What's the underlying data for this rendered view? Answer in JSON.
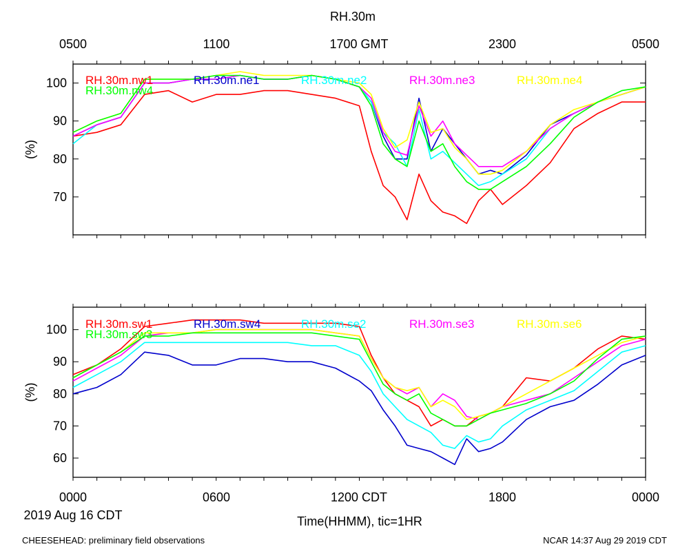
{
  "title": "RH.30m",
  "top_time_labels": [
    "0500",
    "1100",
    "1700 GMT",
    "2300",
    "0500"
  ],
  "bottom_time_labels": [
    "0000",
    "0600",
    "1200 CDT",
    "1800",
    "0000"
  ],
  "date_label": "2019 Aug 16 CDT",
  "xlabel": "Time(HHMM), tic=1HR",
  "footer_left": "CHEESEHEAD: preliminary field observations",
  "footer_right": "NCAR 14:37 Aug 29 2019 CDT",
  "colors": {
    "red": "#ff0000",
    "blue": "#0000cc",
    "cyan": "#00ffff",
    "magenta": "#ff00ff",
    "yellow": "#ffff00",
    "green": "#00ff00"
  },
  "chart_data": [
    {
      "type": "line",
      "name": "top-panel",
      "xlabel": "",
      "ylabel": "(%)",
      "xlim": [
        0,
        24
      ],
      "ylim": [
        60,
        105
      ],
      "yticks": [
        70,
        80,
        90,
        100
      ],
      "series": [
        {
          "name": "RH.30m.nw1",
          "color": "red",
          "x": [
            0,
            1,
            2,
            3,
            4,
            5,
            6,
            7,
            8,
            9,
            10,
            11,
            12,
            12.5,
            13,
            13.5,
            14,
            14.5,
            15,
            15.5,
            16,
            16.5,
            17,
            17.5,
            18,
            19,
            20,
            21,
            22,
            23,
            24
          ],
          "y": [
            86,
            87,
            89,
            97,
            98,
            95,
            97,
            97,
            98,
            98,
            97,
            96,
            94,
            82,
            73,
            70,
            64,
            76,
            69,
            66,
            65,
            63,
            69,
            72,
            68,
            73,
            79,
            88,
            92,
            95,
            95
          ]
        },
        {
          "name": "RH.30m.ne1",
          "color": "blue",
          "x": [
            0,
            1,
            2,
            3,
            4,
            5,
            6,
            7,
            8,
            9,
            10,
            11,
            12,
            12.5,
            13,
            13.5,
            14,
            14.5,
            15,
            15.5,
            16,
            16.5,
            17,
            17.5,
            18,
            19,
            20,
            21,
            22,
            23,
            24
          ],
          "y": [
            86,
            89,
            91,
            100,
            100,
            101,
            101,
            102,
            101,
            101,
            102,
            101,
            99,
            95,
            86,
            80,
            80,
            96,
            82,
            88,
            84,
            80,
            76,
            77,
            76,
            81,
            89,
            92,
            95,
            97,
            99
          ]
        },
        {
          "name": "RH.30m.ne2",
          "color": "cyan",
          "x": [
            0,
            1,
            2,
            3,
            4,
            5,
            6,
            7,
            8,
            9,
            10,
            11,
            12,
            12.5,
            13,
            13.5,
            14,
            14.5,
            15,
            15.5,
            16,
            16.5,
            17,
            17.5,
            18,
            19,
            20,
            21,
            22,
            23,
            24
          ],
          "y": [
            84,
            89,
            91,
            100,
            100,
            101,
            101,
            102,
            101,
            101,
            102,
            101,
            99,
            95,
            87,
            84,
            78,
            93,
            80,
            82,
            79,
            76,
            73,
            74,
            76,
            80,
            88,
            92,
            95,
            97,
            99
          ]
        },
        {
          "name": "RH.30m.ne3",
          "color": "magenta",
          "x": [
            0,
            1,
            2,
            3,
            4,
            5,
            6,
            7,
            8,
            9,
            10,
            11,
            12,
            12.5,
            13,
            13.5,
            14,
            14.5,
            15,
            15.5,
            16,
            16.5,
            17,
            17.5,
            18,
            19,
            20,
            21,
            22,
            23,
            24
          ],
          "y": [
            86,
            89,
            91,
            100,
            100,
            101,
            101,
            102,
            101,
            101,
            102,
            101,
            99,
            96,
            87,
            82,
            81,
            94,
            86,
            90,
            84,
            81,
            78,
            78,
            78,
            82,
            88,
            92,
            95,
            97,
            99
          ]
        },
        {
          "name": "RH.30m.ne4",
          "color": "yellow",
          "x": [
            0,
            1,
            2,
            3,
            4,
            5,
            6,
            7,
            8,
            9,
            10,
            11,
            12,
            12.5,
            13,
            13.5,
            14,
            14.5,
            15,
            15.5,
            16,
            16.5,
            17,
            17.5,
            18,
            19,
            20,
            21,
            22,
            23,
            24
          ],
          "y": [
            87,
            90,
            92,
            101,
            101,
            101,
            102,
            103,
            102,
            102,
            102,
            101,
            100,
            97,
            88,
            83,
            85,
            95,
            87,
            88,
            83,
            80,
            76,
            76,
            77,
            82,
            89,
            93,
            95,
            97,
            99
          ]
        },
        {
          "name": "RH.30m.nw4",
          "color": "green",
          "x": [
            0,
            1,
            2,
            3,
            4,
            5,
            6,
            7,
            8,
            9,
            10,
            11,
            12,
            12.5,
            13,
            13.5,
            14,
            14.5,
            15,
            15.5,
            16,
            16.5,
            17,
            17.5,
            18,
            19,
            20,
            21,
            22,
            23,
            24
          ],
          "y": [
            87,
            90,
            92,
            101,
            101,
            101,
            102,
            102,
            101,
            101,
            102,
            101,
            99,
            94,
            84,
            80,
            78,
            90,
            82,
            84,
            78,
            74,
            72,
            72,
            74,
            78,
            84,
            91,
            95,
            98,
            99
          ]
        }
      ]
    },
    {
      "type": "line",
      "name": "bottom-panel",
      "xlabel": "Time(HHMM), tic=1HR",
      "ylabel": "(%)",
      "xlim": [
        0,
        24
      ],
      "ylim": [
        54,
        107
      ],
      "yticks": [
        60,
        70,
        80,
        90,
        100
      ],
      "series": [
        {
          "name": "RH.30m.sw1",
          "color": "red",
          "x": [
            0,
            1,
            2,
            3,
            4,
            5,
            6,
            7,
            8,
            9,
            10,
            11,
            12,
            12.5,
            13,
            13.5,
            14,
            14.5,
            15,
            15.5,
            16,
            16.5,
            17,
            17.5,
            18,
            19,
            20,
            21,
            22,
            23,
            24
          ],
          "y": [
            86,
            89,
            94,
            101,
            102,
            103,
            103,
            103,
            102,
            102,
            102,
            102,
            101,
            92,
            85,
            80,
            78,
            76,
            70,
            72,
            70,
            70,
            73,
            74,
            76,
            85,
            84,
            88,
            94,
            98,
            97
          ]
        },
        {
          "name": "RH.30m.sw4",
          "color": "blue",
          "x": [
            0,
            1,
            2,
            3,
            4,
            5,
            6,
            7,
            8,
            9,
            10,
            11,
            12,
            12.5,
            13,
            13.5,
            14,
            14.5,
            15,
            15.5,
            16,
            16.5,
            17,
            17.5,
            18,
            19,
            20,
            21,
            22,
            23,
            24
          ],
          "y": [
            80,
            82,
            86,
            93,
            92,
            89,
            89,
            91,
            91,
            90,
            90,
            88,
            84,
            81,
            75,
            70,
            64,
            63,
            62,
            60,
            58,
            66,
            62,
            63,
            65,
            72,
            76,
            78,
            83,
            89,
            92
          ]
        },
        {
          "name": "RH.30m.se2",
          "color": "cyan",
          "x": [
            0,
            1,
            2,
            3,
            4,
            5,
            6,
            7,
            8,
            9,
            10,
            11,
            12,
            12.5,
            13,
            13.5,
            14,
            14.5,
            15,
            15.5,
            16,
            16.5,
            17,
            17.5,
            18,
            19,
            20,
            21,
            22,
            23,
            24
          ],
          "y": [
            82,
            86,
            90,
            96,
            96,
            96,
            96,
            96,
            96,
            96,
            95,
            95,
            92,
            87,
            80,
            76,
            72,
            70,
            68,
            64,
            63,
            67,
            65,
            66,
            70,
            75,
            78,
            81,
            87,
            93,
            95
          ]
        },
        {
          "name": "RH.30m.se3",
          "color": "magenta",
          "x": [
            0,
            1,
            2,
            3,
            4,
            5,
            6,
            7,
            8,
            9,
            10,
            11,
            12,
            12.5,
            13,
            13.5,
            14,
            14.5,
            15,
            15.5,
            16,
            16.5,
            17,
            17.5,
            18,
            19,
            20,
            21,
            22,
            23,
            24
          ],
          "y": [
            84,
            88,
            92,
            98,
            99,
            99,
            100,
            100,
            100,
            100,
            100,
            99,
            98,
            91,
            85,
            82,
            80,
            82,
            76,
            80,
            78,
            73,
            72,
            74,
            76,
            78,
            80,
            85,
            90,
            95,
            97
          ]
        },
        {
          "name": "RH.30m.se6",
          "color": "yellow",
          "x": [
            0,
            1,
            2,
            3,
            4,
            5,
            6,
            7,
            8,
            9,
            10,
            11,
            12,
            12.5,
            13,
            13.5,
            14,
            14.5,
            15,
            15.5,
            16,
            16.5,
            17,
            17.5,
            18,
            19,
            20,
            21,
            22,
            23,
            24
          ],
          "y": [
            85,
            89,
            93,
            99,
            99,
            99,
            100,
            100,
            100,
            100,
            100,
            99,
            98,
            91,
            85,
            82,
            81,
            82,
            76,
            78,
            76,
            72,
            73,
            74,
            76,
            80,
            84,
            88,
            92,
            96,
            98
          ]
        },
        {
          "name": "RH.30m.sw3",
          "color": "green",
          "x": [
            0,
            1,
            2,
            3,
            4,
            5,
            6,
            7,
            8,
            9,
            10,
            11,
            12,
            12.5,
            13,
            13.5,
            14,
            14.5,
            15,
            15.5,
            16,
            16.5,
            17,
            17.5,
            18,
            19,
            20,
            21,
            22,
            23,
            24
          ],
          "y": [
            85,
            89,
            93,
            98,
            98,
            99,
            99,
            99,
            99,
            99,
            99,
            98,
            97,
            90,
            83,
            80,
            78,
            80,
            74,
            72,
            70,
            70,
            72,
            74,
            75,
            77,
            80,
            84,
            91,
            97,
            98
          ]
        }
      ]
    }
  ]
}
